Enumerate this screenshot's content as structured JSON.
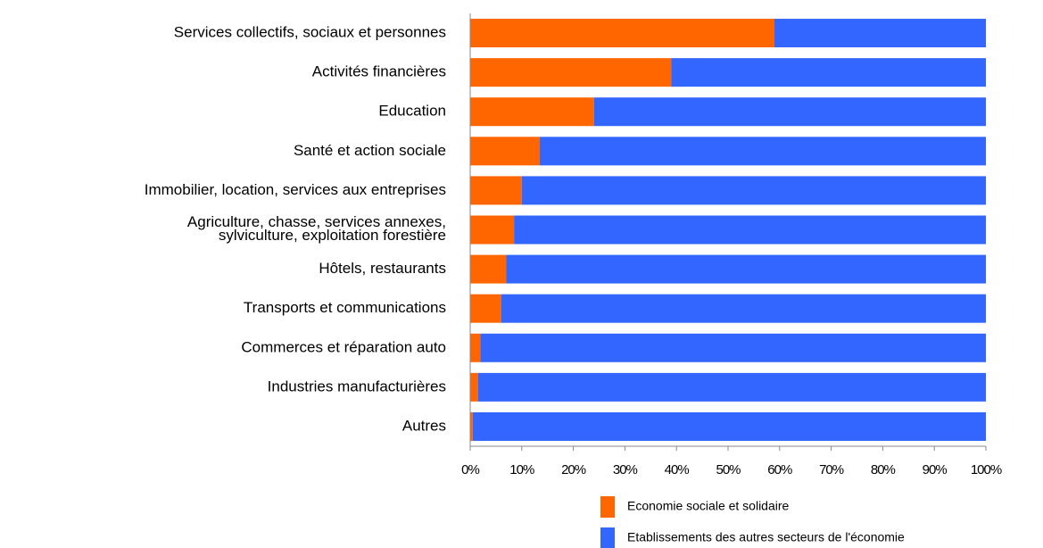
{
  "chart_data": {
    "type": "stacked_barh",
    "categories": [
      "Services collectifs, sociaux et personnes",
      "Activités financières",
      "Education",
      "Santé et action sociale",
      "Immobilier, location, services aux entreprises",
      "Agriculture, chasse, services annexes,\nsylviculture, exploitation forestière",
      "Hôtels, restaurants",
      "Transports et communications",
      "Commerces et réparation auto",
      "Industries manufacturières",
      "Autres"
    ],
    "series": [
      {
        "name": "Economie sociale et solidaire",
        "color": "#ff6600",
        "values": [
          59,
          39,
          24,
          13.5,
          10,
          8.5,
          7,
          6,
          2,
          1.5,
          0.5
        ]
      },
      {
        "name": "Etablissements des autres secteurs de l'économie",
        "color": "#3366ff",
        "values": [
          41,
          61,
          76,
          86.5,
          90,
          91.5,
          93,
          94,
          98,
          98.5,
          99.5
        ]
      }
    ],
    "xlim": [
      0,
      100
    ],
    "xticks": [
      {
        "value": 0,
        "label": "0%"
      },
      {
        "value": 10,
        "label": "10%"
      },
      {
        "value": 20,
        "label": "20%"
      },
      {
        "value": 30,
        "label": "30%"
      },
      {
        "value": 40,
        "label": "40%"
      },
      {
        "value": 50,
        "label": "50%"
      },
      {
        "value": 60,
        "label": "60%"
      },
      {
        "value": 70,
        "label": "70%"
      },
      {
        "value": 80,
        "label": "80%"
      },
      {
        "value": 90,
        "label": "90%"
      },
      {
        "value": 100,
        "label": "100%"
      }
    ],
    "legend": "bottom-right"
  }
}
